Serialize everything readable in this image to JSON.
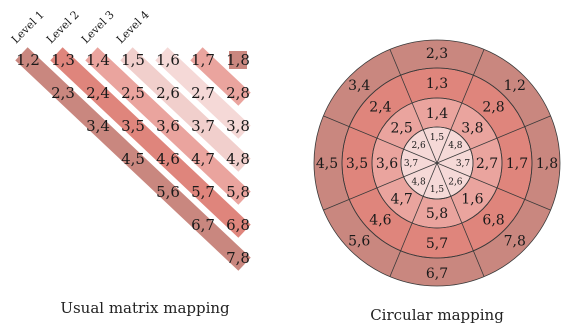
{
  "matrix_mapping": {
    "caption": "Usual matrix mapping",
    "level_labels": [
      "Level 1",
      "Level 2",
      "Level 3",
      "Level 4"
    ],
    "level_colors": [
      "#c9877f",
      "#df857c",
      "#eaa49e",
      "#f1cfcc",
      "#f5d9d7",
      "#eaa49e",
      "#c9877f"
    ],
    "cells": [
      {
        "label": "1,2",
        "level": 1
      },
      {
        "label": "1,3",
        "level": 2
      },
      {
        "label": "1,4",
        "level": 3
      },
      {
        "label": "1,5",
        "level": 4
      },
      {
        "label": "1,6",
        "level": 3
      },
      {
        "label": "1,7",
        "level": 2
      },
      {
        "label": "1,8",
        "level": 1
      },
      {
        "label": "2,3",
        "level": 1
      },
      {
        "label": "2,4",
        "level": 2
      },
      {
        "label": "2,5",
        "level": 3
      },
      {
        "label": "2,6",
        "level": 4
      },
      {
        "label": "2,7",
        "level": 3
      },
      {
        "label": "2,8",
        "level": 2
      },
      {
        "label": "3,4",
        "level": 1
      },
      {
        "label": "3,5",
        "level": 2
      },
      {
        "label": "3,6",
        "level": 3
      },
      {
        "label": "3,7",
        "level": 4
      },
      {
        "label": "3,8",
        "level": 3
      },
      {
        "label": "4,5",
        "level": 1
      },
      {
        "label": "4,6",
        "level": 2
      },
      {
        "label": "4,7",
        "level": 3
      },
      {
        "label": "4,8",
        "level": 4
      },
      {
        "label": "5,6",
        "level": 1
      },
      {
        "label": "5,7",
        "level": 2
      },
      {
        "label": "5,8",
        "level": 3
      },
      {
        "label": "6,7",
        "level": 1
      },
      {
        "label": "6,8",
        "level": 2
      },
      {
        "label": "7,8",
        "level": 1
      }
    ]
  },
  "circular_mapping": {
    "caption": "Circular mapping",
    "rings": [
      {
        "name": "level-1",
        "color": "#c9877f",
        "labels": [
          "2,3",
          "1,2",
          "1,8",
          "7,8",
          "6,7",
          "5,6",
          "4,5",
          "3,4"
        ]
      },
      {
        "name": "level-2",
        "color": "#df857c",
        "labels": [
          "1,3",
          "2,8",
          "1,7",
          "6,8",
          "5,7",
          "4,6",
          "3,5",
          "2,4"
        ]
      },
      {
        "name": "level-3",
        "color": "#eaa49e",
        "labels": [
          "1,4",
          "3,8",
          "2,7",
          "1,6",
          "5,8",
          "4,7",
          "3,6",
          "2,5"
        ]
      },
      {
        "name": "level-4",
        "color": "#f5d9d7",
        "labels": [
          "1,5",
          "4,8",
          "3,7",
          "2,6",
          "1,5",
          "4,8",
          "3,7",
          "2,6"
        ]
      }
    ]
  }
}
